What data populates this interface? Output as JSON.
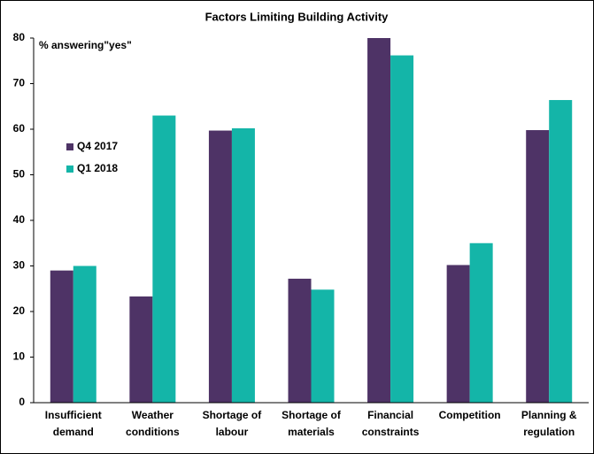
{
  "chart_data": {
    "type": "bar",
    "title": "Factors Limiting Building Activity",
    "y_label": "% answering\"yes\"",
    "categories": [
      [
        "Insufficient",
        "demand"
      ],
      [
        "Weather",
        "conditions"
      ],
      [
        "Shortage of",
        "labour"
      ],
      [
        "Shortage of",
        "materials"
      ],
      [
        "Financial",
        "constraints"
      ],
      [
        "Competition"
      ],
      [
        "Planning &",
        "regulation"
      ]
    ],
    "series": [
      {
        "name": "Q4 2017",
        "color": "#4e3366",
        "values": [
          29,
          23.3,
          59.7,
          27.2,
          80,
          30.2,
          59.8
        ]
      },
      {
        "name": "Q1 2018",
        "color": "#14b5a8",
        "values": [
          30,
          63,
          60.2,
          24.8,
          76.2,
          35,
          66.4
        ]
      }
    ],
    "ylim": [
      0,
      80
    ],
    "yticks": [
      0,
      10,
      20,
      30,
      40,
      50,
      60,
      70,
      80
    ],
    "grid": false
  }
}
